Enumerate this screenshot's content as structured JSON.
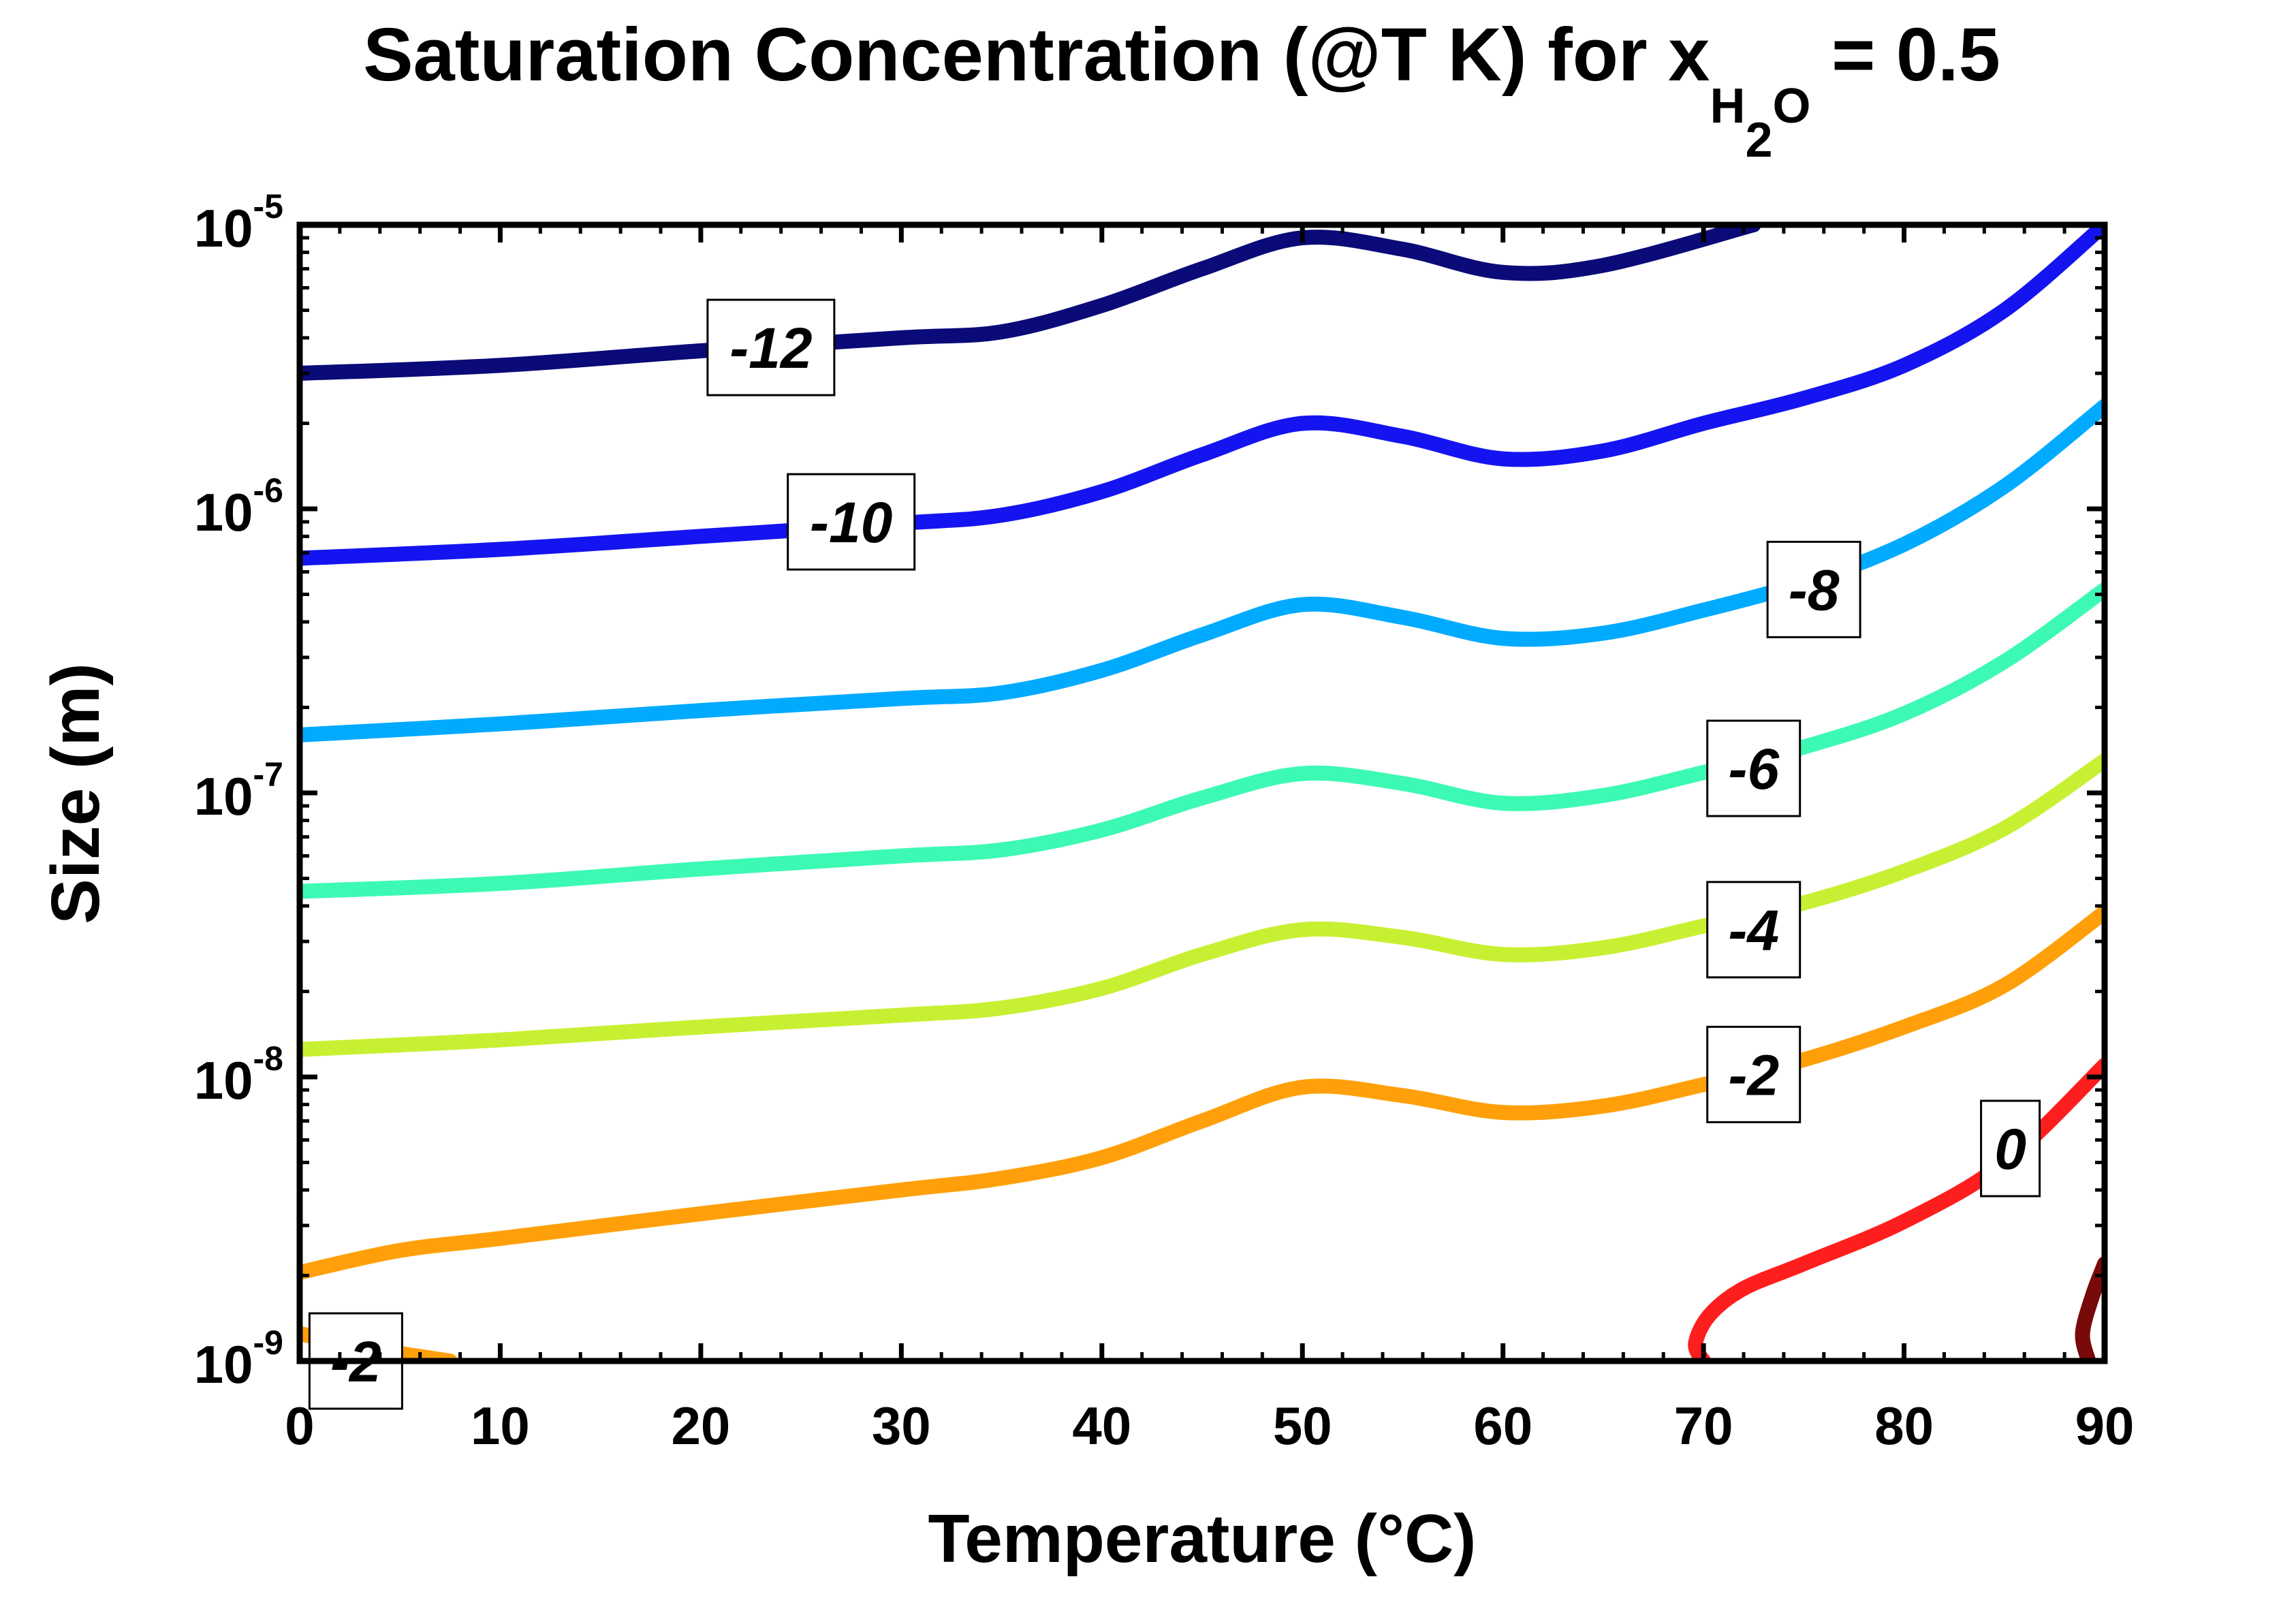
{
  "chart_data": {
    "type": "contour",
    "title": {
      "prefix": "Saturation Concentration (@T K) for x",
      "subscript_letter": "H",
      "subscript_digit": "2",
      "subscript_letter2": "O",
      "suffix": " = 0.5"
    },
    "xlabel": "Temperature (°C)",
    "ylabel": "Size (m)",
    "xlim": [
      0,
      90
    ],
    "ylim": [
      1e-09,
      1e-05
    ],
    "yscale": "log",
    "x_ticks": [
      0,
      10,
      20,
      30,
      40,
      50,
      60,
      70,
      80,
      90
    ],
    "x_tick_labels": [
      "0",
      "10",
      "20",
      "30",
      "40",
      "50",
      "60",
      "70",
      "80",
      "90"
    ],
    "y_ticks": [
      {
        "value": 1e-09,
        "base": "10",
        "exp": "-9"
      },
      {
        "value": 1e-08,
        "base": "10",
        "exp": "-8"
      },
      {
        "value": 1e-07,
        "base": "10",
        "exp": "-7"
      },
      {
        "value": 1e-06,
        "base": "10",
        "exp": "-6"
      },
      {
        "value": 1e-05,
        "base": "10",
        "exp": "-5"
      }
    ],
    "grid": false,
    "series": [
      {
        "level": -12,
        "label": "-12",
        "color": "#0a0a78",
        "points": [
          [
            0,
            3e-06
          ],
          [
            10,
            3.2e-06
          ],
          [
            20,
            3.6e-06
          ],
          [
            30,
            4e-06
          ],
          [
            35,
            4.2e-06
          ],
          [
            40,
            5.2e-06
          ],
          [
            45,
            7e-06
          ],
          [
            50,
            9e-06
          ],
          [
            55,
            8.2e-06
          ],
          [
            60,
            6.8e-06
          ],
          [
            65,
            7.2e-06
          ],
          [
            72.5,
            1e-05
          ]
        ],
        "label_at": [
          23.5,
          3.7e-06
        ]
      },
      {
        "level": -10,
        "label": "-10",
        "color": "#1414f0",
        "points": [
          [
            0,
            6.7e-07
          ],
          [
            10,
            7.2e-07
          ],
          [
            20,
            8e-07
          ],
          [
            30,
            8.9e-07
          ],
          [
            35,
            9.5e-07
          ],
          [
            40,
            1.15e-06
          ],
          [
            45,
            1.55e-06
          ],
          [
            50,
            2e-06
          ],
          [
            55,
            1.8e-06
          ],
          [
            60,
            1.5e-06
          ],
          [
            65,
            1.6e-06
          ],
          [
            70,
            2e-06
          ],
          [
            75,
            2.45e-06
          ],
          [
            80,
            3.2e-06
          ],
          [
            85,
            5e-06
          ],
          [
            90,
            1e-05
          ]
        ],
        "label_at": [
          27.5,
          9e-07
        ]
      },
      {
        "level": -8,
        "label": "-8",
        "color": "#00aaff",
        "points": [
          [
            0,
            1.6e-07
          ],
          [
            10,
            1.75e-07
          ],
          [
            20,
            1.95e-07
          ],
          [
            30,
            2.15e-07
          ],
          [
            35,
            2.25e-07
          ],
          [
            40,
            2.7e-07
          ],
          [
            45,
            3.6e-07
          ],
          [
            50,
            4.6e-07
          ],
          [
            55,
            4.15e-07
          ],
          [
            60,
            3.5e-07
          ],
          [
            65,
            3.65e-07
          ],
          [
            70,
            4.4e-07
          ],
          [
            75,
            5.5e-07
          ],
          [
            80,
            7.5e-07
          ],
          [
            85,
            1.2e-06
          ],
          [
            90,
            2.3e-06
          ]
        ],
        "label_at": [
          75.5,
          5.2e-07
        ]
      },
      {
        "level": -6,
        "label": "-6",
        "color": "#3cfab4",
        "points": [
          [
            0,
            4.5e-08
          ],
          [
            10,
            4.8e-08
          ],
          [
            20,
            5.4e-08
          ],
          [
            30,
            6e-08
          ],
          [
            35,
            6.3e-08
          ],
          [
            40,
            7.4e-08
          ],
          [
            45,
            9.6e-08
          ],
          [
            50,
            1.17e-07
          ],
          [
            55,
            1.08e-07
          ],
          [
            60,
            9.2e-08
          ],
          [
            65,
            9.8e-08
          ],
          [
            70,
            1.18e-07
          ],
          [
            75,
            1.45e-07
          ],
          [
            80,
            1.9e-07
          ],
          [
            85,
            2.9e-07
          ],
          [
            90,
            5.2e-07
          ]
        ],
        "label_at": [
          72.5,
          1.22e-07
        ]
      },
      {
        "level": -4,
        "label": "-4",
        "color": "#c8f032",
        "points": [
          [
            0,
            1.25e-08
          ],
          [
            10,
            1.35e-08
          ],
          [
            20,
            1.5e-08
          ],
          [
            30,
            1.65e-08
          ],
          [
            35,
            1.75e-08
          ],
          [
            40,
            2.05e-08
          ],
          [
            45,
            2.7e-08
          ],
          [
            50,
            3.3e-08
          ],
          [
            55,
            3.1e-08
          ],
          [
            60,
            2.7e-08
          ],
          [
            65,
            2.85e-08
          ],
          [
            70,
            3.4e-08
          ],
          [
            75,
            4.1e-08
          ],
          [
            80,
            5.3e-08
          ],
          [
            85,
            7.5e-08
          ],
          [
            90,
            1.3e-07
          ]
        ],
        "label_at": [
          72.5,
          3.3e-08
        ]
      },
      {
        "level": -2,
        "label": "-2",
        "color": "#ffa00a",
        "points": [
          [
            0,
            2.05e-09
          ],
          [
            5,
            2.45e-09
          ],
          [
            10,
            2.7e-09
          ],
          [
            20,
            3.3e-09
          ],
          [
            30,
            4e-09
          ],
          [
            35,
            4.4e-09
          ],
          [
            40,
            5.2e-09
          ],
          [
            45,
            7e-09
          ],
          [
            50,
            9.2e-09
          ],
          [
            55,
            8.6e-09
          ],
          [
            60,
            7.5e-09
          ],
          [
            65,
            7.9e-09
          ],
          [
            70,
            9.4e-09
          ],
          [
            75,
            1.15e-08
          ],
          [
            80,
            1.5e-08
          ],
          [
            85,
            2.1e-08
          ],
          [
            90,
            3.8e-08
          ]
        ],
        "label_at": [
          72.5,
          1.02e-08
        ]
      },
      {
        "level": -2,
        "label": "-2",
        "color": "#ffa00a",
        "points": [
          [
            0,
            1.25e-09
          ],
          [
            3,
            1.12e-09
          ],
          [
            7.5,
            1e-09
          ]
        ],
        "label_at": [
          2.8,
          1e-09
        ]
      },
      {
        "level": 0,
        "label": "0",
        "color": "#ff1e1e",
        "points": [
          [
            70,
            1e-09
          ],
          [
            69.6,
            1.15e-09
          ],
          [
            70.3,
            1.45e-09
          ],
          [
            72,
            1.8e-09
          ],
          [
            75,
            2.2e-09
          ],
          [
            80,
            3.1e-09
          ],
          [
            85,
            5e-09
          ],
          [
            90,
            1.1e-08
          ]
        ],
        "label_at": [
          85.3,
          5.6e-09
        ]
      },
      {
        "level": 2,
        "label": "",
        "color": "#780a0a",
        "points": [
          [
            89.2,
            1e-09
          ],
          [
            88.9,
            1.25e-09
          ],
          [
            89.4,
            1.7e-09
          ],
          [
            90,
            2.2e-09
          ]
        ],
        "label_at": null
      }
    ]
  }
}
